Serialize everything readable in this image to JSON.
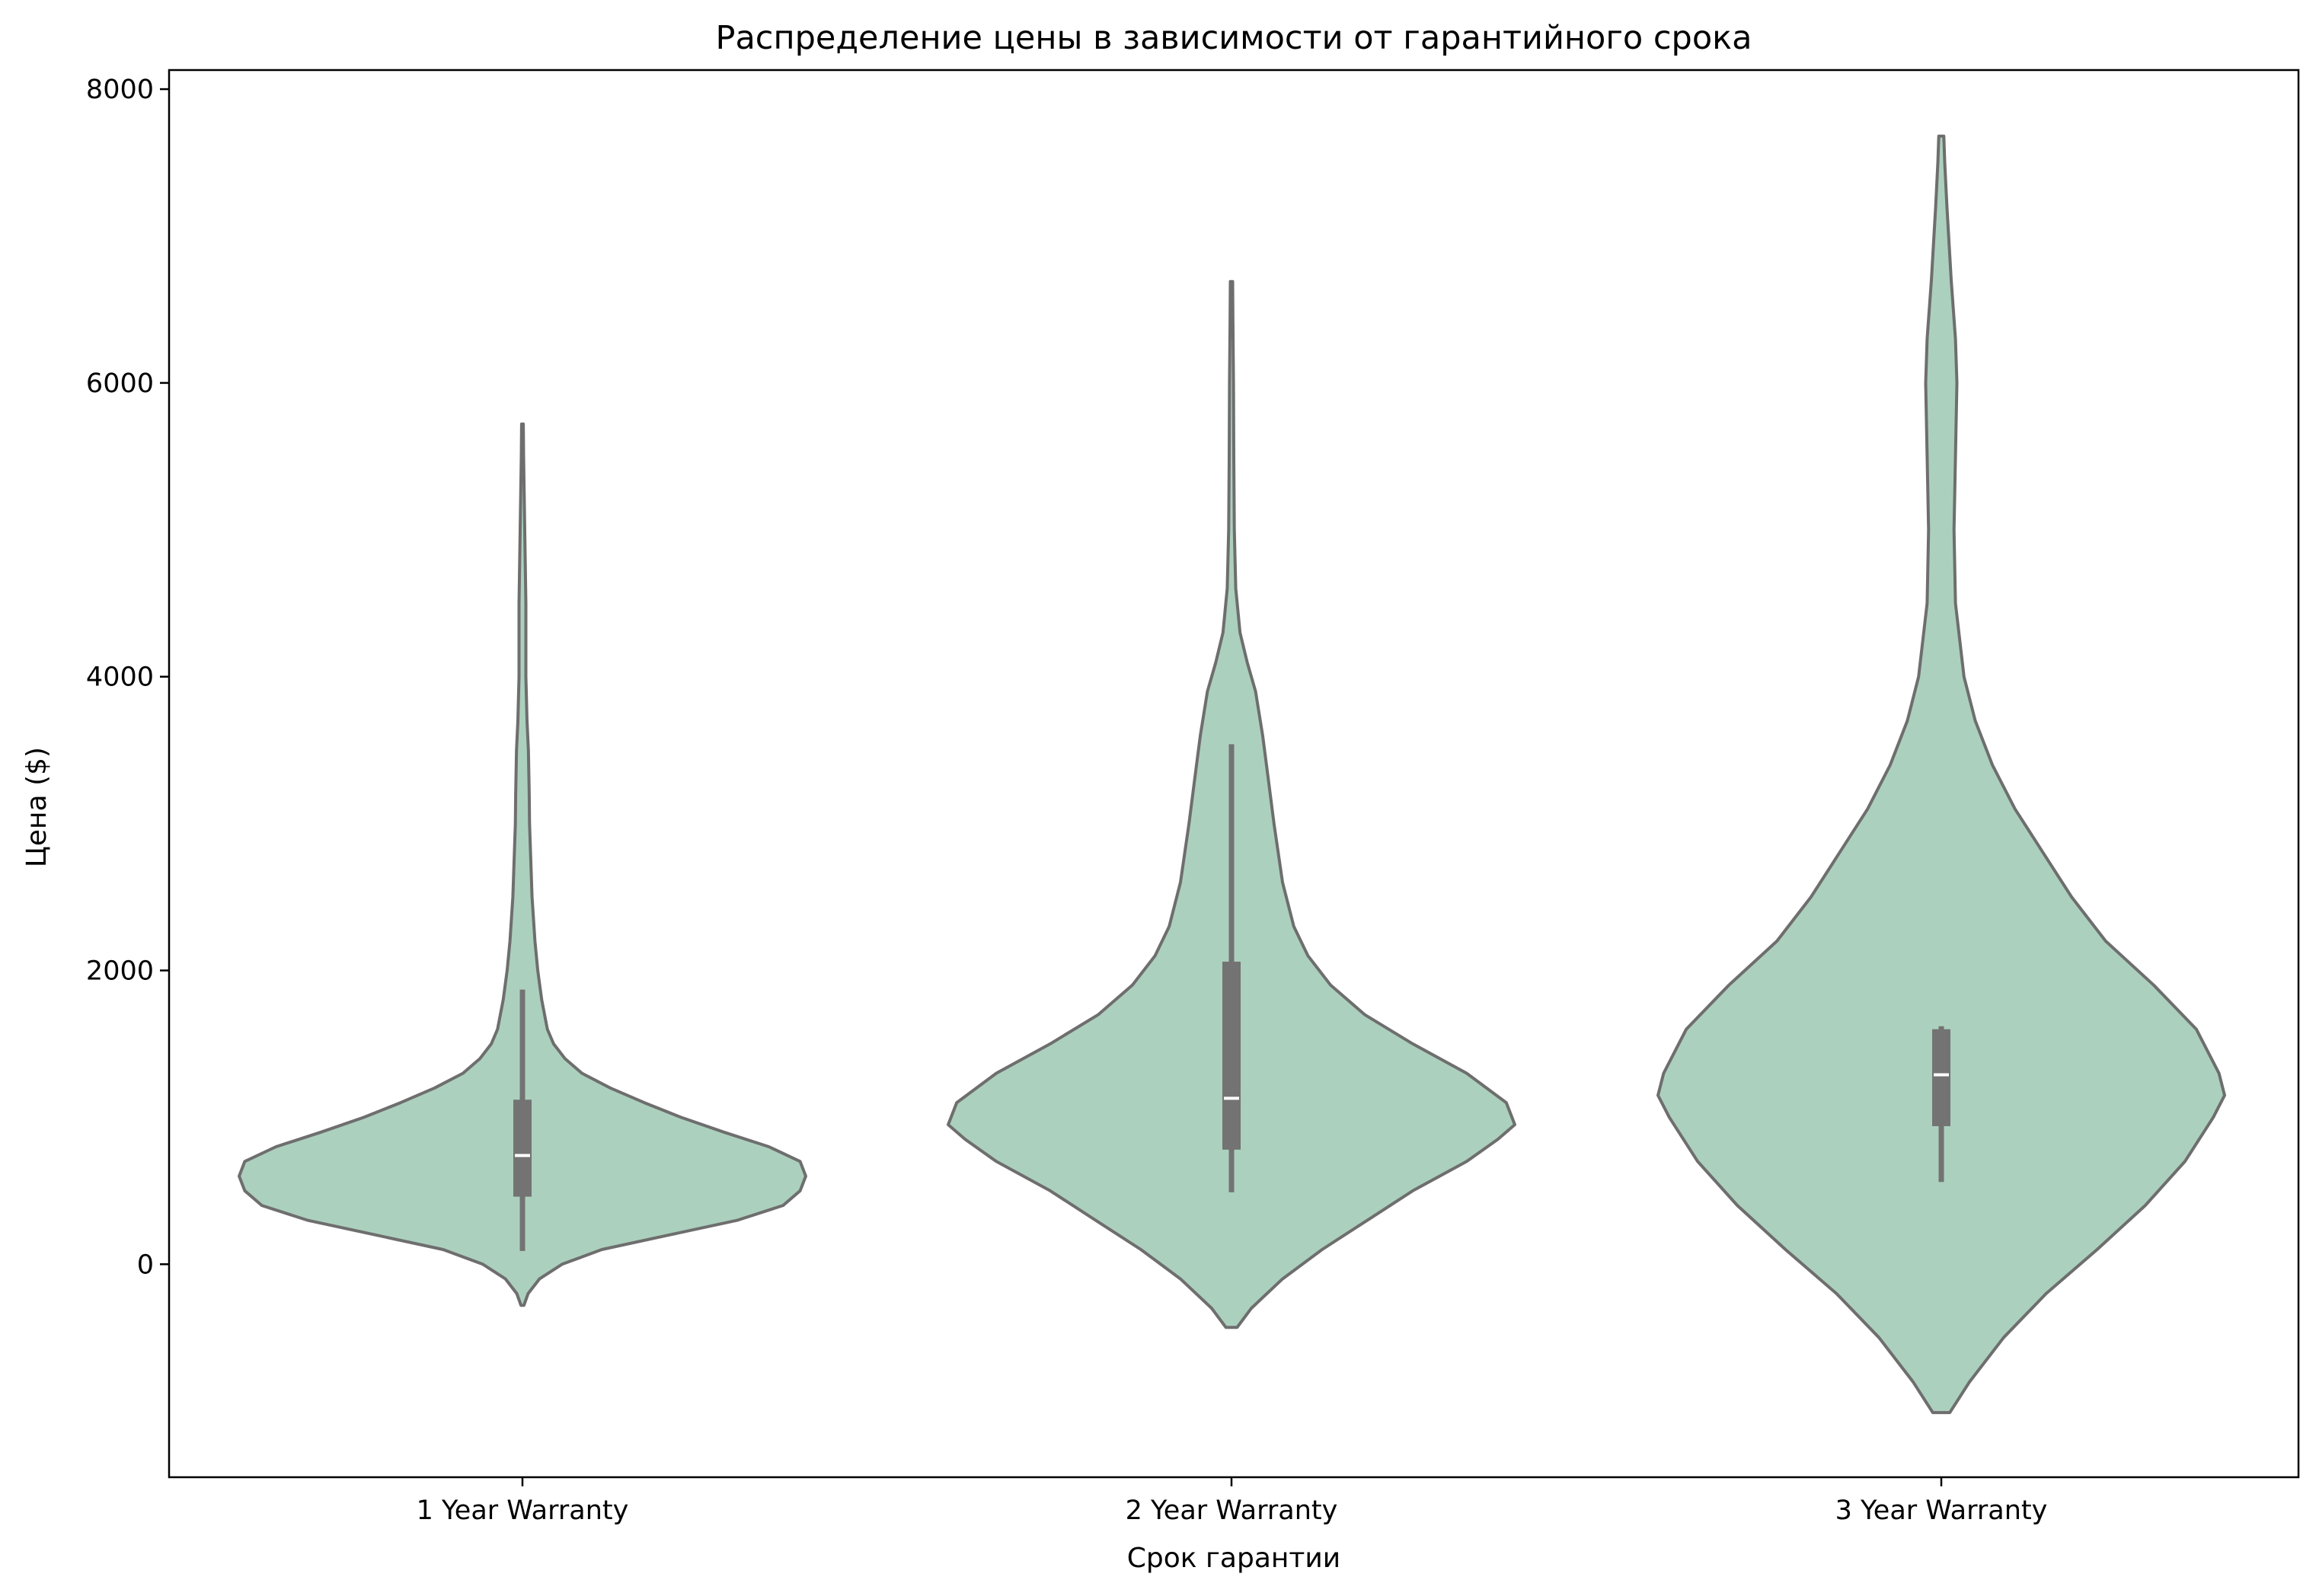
{
  "chart_data": {
    "type": "violin",
    "title": "Распределение цены в зависимости от гарантийного срока",
    "xlabel": "Срок гарантии",
    "ylabel": "Цена ($)",
    "ylim": [
      -1450,
      8130
    ],
    "yticks": [
      0,
      2000,
      4000,
      6000,
      8000
    ],
    "grid": false,
    "colors": {
      "fill": "#acd0be",
      "edge": "#6e6e6e",
      "box": "#737373",
      "median": "#ffffff"
    },
    "categories": [
      "1 Year Warranty",
      "2 Year Warranty",
      "3 Year Warranty"
    ],
    "violins": [
      {
        "category": "1 Year Warranty",
        "kde_min": -280,
        "kde_max": 5720,
        "box": {
          "q1": 460,
          "median": 740,
          "q3": 1120,
          "whisker_low": 90,
          "whisker_high": 1870
        },
        "density_profile": [
          [
            -280,
            0.005
          ],
          [
            -200,
            0.02
          ],
          [
            -100,
            0.06
          ],
          [
            0,
            0.14
          ],
          [
            100,
            0.28
          ],
          [
            200,
            0.52
          ],
          [
            300,
            0.76
          ],
          [
            400,
            0.92
          ],
          [
            500,
            0.98
          ],
          [
            600,
            1.0
          ],
          [
            700,
            0.98
          ],
          [
            800,
            0.87
          ],
          [
            900,
            0.71
          ],
          [
            1000,
            0.56
          ],
          [
            1100,
            0.43
          ],
          [
            1200,
            0.31
          ],
          [
            1300,
            0.21
          ],
          [
            1400,
            0.15
          ],
          [
            1500,
            0.11
          ],
          [
            1600,
            0.088
          ],
          [
            1800,
            0.068
          ],
          [
            2000,
            0.054
          ],
          [
            2200,
            0.044
          ],
          [
            2500,
            0.034
          ],
          [
            3000,
            0.025
          ],
          [
            3200,
            0.024
          ],
          [
            3500,
            0.021
          ],
          [
            3700,
            0.016
          ],
          [
            4000,
            0.012
          ],
          [
            4500,
            0.012
          ],
          [
            5000,
            0.008
          ],
          [
            5500,
            0.004
          ],
          [
            5720,
            0.003
          ]
        ]
      },
      {
        "category": "2 Year Warranty",
        "kde_min": -430,
        "kde_max": 6690,
        "box": {
          "q1": 780,
          "median": 1130,
          "q3": 2060,
          "whisker_low": 490,
          "whisker_high": 3540
        },
        "density_profile": [
          [
            -430,
            0.02
          ],
          [
            -300,
            0.07
          ],
          [
            -100,
            0.18
          ],
          [
            100,
            0.32
          ],
          [
            300,
            0.48
          ],
          [
            500,
            0.64
          ],
          [
            700,
            0.83
          ],
          [
            850,
            0.94
          ],
          [
            950,
            1.0
          ],
          [
            1100,
            0.97
          ],
          [
            1300,
            0.83
          ],
          [
            1500,
            0.64
          ],
          [
            1700,
            0.47
          ],
          [
            1900,
            0.35
          ],
          [
            2100,
            0.27
          ],
          [
            2300,
            0.22
          ],
          [
            2600,
            0.18
          ],
          [
            3000,
            0.15
          ],
          [
            3300,
            0.13
          ],
          [
            3600,
            0.11
          ],
          [
            3900,
            0.085
          ],
          [
            4100,
            0.055
          ],
          [
            4300,
            0.03
          ],
          [
            4600,
            0.015
          ],
          [
            5000,
            0.01
          ],
          [
            5500,
            0.008
          ],
          [
            6000,
            0.007
          ],
          [
            6400,
            0.005
          ],
          [
            6690,
            0.004
          ]
        ]
      },
      {
        "category": "3 Year Warranty",
        "kde_min": -1010,
        "kde_max": 7680,
        "box": {
          "q1": 940,
          "median": 1290,
          "q3": 1600,
          "whisker_low": 560,
          "whisker_high": 1620
        },
        "density_profile": [
          [
            -1010,
            0.03
          ],
          [
            -800,
            0.1
          ],
          [
            -500,
            0.22
          ],
          [
            -200,
            0.37
          ],
          [
            100,
            0.55
          ],
          [
            400,
            0.72
          ],
          [
            700,
            0.86
          ],
          [
            1000,
            0.96
          ],
          [
            1150,
            1.0
          ],
          [
            1300,
            0.98
          ],
          [
            1600,
            0.9
          ],
          [
            1900,
            0.75
          ],
          [
            2200,
            0.58
          ],
          [
            2500,
            0.46
          ],
          [
            2800,
            0.36
          ],
          [
            3100,
            0.26
          ],
          [
            3400,
            0.18
          ],
          [
            3700,
            0.12
          ],
          [
            4000,
            0.08
          ],
          [
            4500,
            0.05
          ],
          [
            5000,
            0.045
          ],
          [
            5500,
            0.05
          ],
          [
            6000,
            0.055
          ],
          [
            6300,
            0.05
          ],
          [
            6700,
            0.035
          ],
          [
            7200,
            0.02
          ],
          [
            7500,
            0.012
          ],
          [
            7680,
            0.009
          ]
        ]
      }
    ]
  }
}
